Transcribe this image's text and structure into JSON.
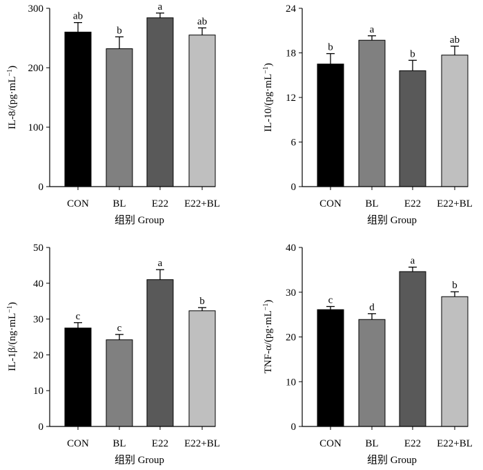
{
  "colors": {
    "CON": "#000000",
    "BL": "#808080",
    "E22": "#595959",
    "E22+BL": "#bfbfbf",
    "axis": "#000000"
  },
  "chart_data": [
    {
      "type": "bar",
      "categories": [
        "CON",
        "BL",
        "E22",
        "E22+BL"
      ],
      "values": [
        260,
        232,
        284,
        255
      ],
      "errors": [
        16,
        20,
        8,
        12
      ],
      "significance": [
        "ab",
        "b",
        "a",
        "ab"
      ],
      "ylabel_parts": [
        "IL-8/(pg·mL",
        "−1",
        ")"
      ],
      "xlabel": "组别 Group",
      "ylim": [
        0,
        300
      ],
      "yticks": [
        0,
        100,
        200,
        300
      ]
    },
    {
      "type": "bar",
      "categories": [
        "CON",
        "BL",
        "E22",
        "E22+BL"
      ],
      "values": [
        16.5,
        19.7,
        15.6,
        17.7
      ],
      "errors": [
        1.4,
        0.6,
        1.4,
        1.2
      ],
      "significance": [
        "b",
        "a",
        "b",
        "ab"
      ],
      "ylabel_parts": [
        "IL-10/(pg·mL",
        "−1",
        ")"
      ],
      "xlabel": "组别 Group",
      "ylim": [
        0,
        24
      ],
      "yticks": [
        0,
        6,
        12,
        18,
        24
      ]
    },
    {
      "type": "bar",
      "categories": [
        "CON",
        "BL",
        "E22",
        "E22+BL"
      ],
      "values": [
        27.5,
        24.2,
        41.0,
        32.3
      ],
      "errors": [
        1.5,
        1.5,
        2.8,
        0.9
      ],
      "significance": [
        "c",
        "c",
        "a",
        "b"
      ],
      "ylabel_parts": [
        "IL-1β/(ng·mL",
        "−1",
        ")"
      ],
      "xlabel": "组别 Group",
      "ylim": [
        0,
        50
      ],
      "yticks": [
        0,
        10,
        20,
        30,
        40,
        50
      ]
    },
    {
      "type": "bar",
      "categories": [
        "CON",
        "BL",
        "E22",
        "E22+BL"
      ],
      "values": [
        26.1,
        23.9,
        34.6,
        29.0
      ],
      "errors": [
        0.7,
        1.3,
        1.0,
        1.1
      ],
      "significance": [
        "c",
        "d",
        "a",
        "b"
      ],
      "ylabel_parts": [
        "TNF-α/(pg·mL",
        "−1",
        ")"
      ],
      "xlabel": "组别 Group",
      "ylim": [
        0,
        40
      ],
      "yticks": [
        0,
        10,
        20,
        30,
        40
      ]
    }
  ]
}
